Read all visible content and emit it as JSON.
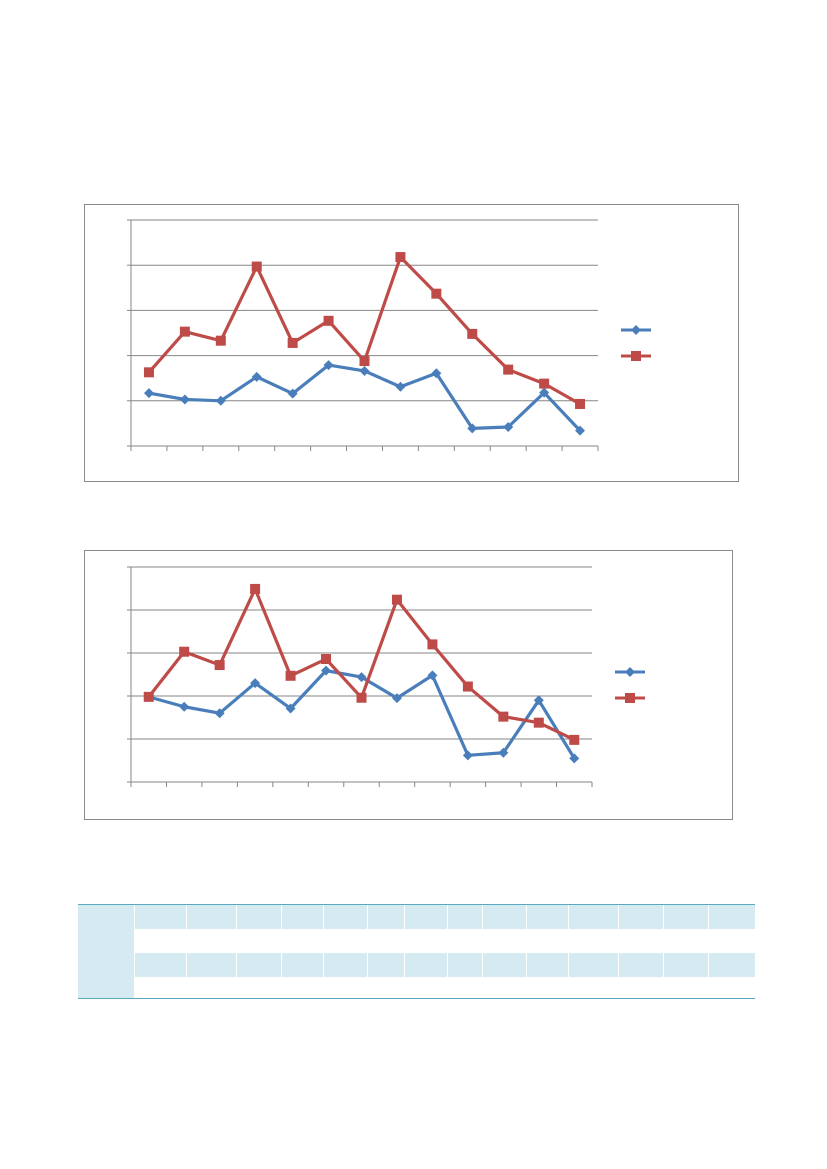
{
  "charts": [
    {
      "id": "chart1",
      "type": "line",
      "title": "",
      "xlabel": "",
      "ylabel": "",
      "categories": [
        "",
        "",
        "",
        "",
        "",
        "",
        "",
        "",
        "",
        "",
        "",
        "",
        ""
      ],
      "ylim": [
        0,
        5
      ],
      "grid": true,
      "legend_position": "right",
      "series": [
        {
          "marker": "diamond",
          "color": "#4a7ebb",
          "values": [
            1.17,
            1.03,
            1.0,
            1.53,
            1.16,
            1.79,
            1.66,
            1.31,
            1.61,
            0.39,
            0.42,
            1.18,
            0.34
          ]
        },
        {
          "marker": "square",
          "color": "#be4b48",
          "values": [
            1.63,
            2.53,
            2.33,
            3.97,
            2.28,
            2.77,
            1.88,
            4.18,
            3.37,
            2.48,
            1.69,
            1.38,
            0.93
          ]
        }
      ]
    },
    {
      "id": "chart2",
      "type": "line",
      "title": "",
      "xlabel": "",
      "ylabel": "",
      "categories": [
        "",
        "",
        "",
        "",
        "",
        "",
        "",
        "",
        "",
        "",
        "",
        "",
        ""
      ],
      "ylim": [
        0,
        5
      ],
      "grid": true,
      "legend_position": "right",
      "series": [
        {
          "marker": "diamond",
          "color": "#4a7ebb",
          "values": [
            1.98,
            1.75,
            1.6,
            2.3,
            1.71,
            2.59,
            2.44,
            1.95,
            2.48,
            0.62,
            0.68,
            1.9,
            0.55
          ]
        },
        {
          "marker": "square",
          "color": "#be4b48",
          "values": [
            1.98,
            3.03,
            2.72,
            4.49,
            2.47,
            2.86,
            1.96,
            4.24,
            3.2,
            2.22,
            1.52,
            1.38,
            0.98
          ]
        }
      ]
    }
  ],
  "table": {
    "columns": [
      "",
      "",
      "",
      "",
      "",
      "",
      "",
      "",
      "",
      "",
      "",
      "",
      "",
      "",
      ""
    ],
    "rows": [
      [
        "",
        "",
        "",
        "",
        "",
        "",
        "",
        "",
        "",
        "",
        "",
        "",
        "",
        "",
        ""
      ],
      [
        "",
        "",
        "",
        "",
        "",
        "",
        "",
        "",
        "",
        "",
        "",
        "",
        "",
        "",
        ""
      ],
      [
        "",
        "",
        "",
        "",
        "",
        "",
        "",
        "",
        "",
        "",
        "",
        "",
        "",
        "",
        ""
      ],
      [
        "",
        "",
        "",
        "",
        "",
        "",
        "",
        "",
        "",
        "",
        "",
        "",
        "",
        "",
        ""
      ]
    ],
    "accent_color": "#5fa9c0",
    "shade_color": "#d6eaf1"
  }
}
